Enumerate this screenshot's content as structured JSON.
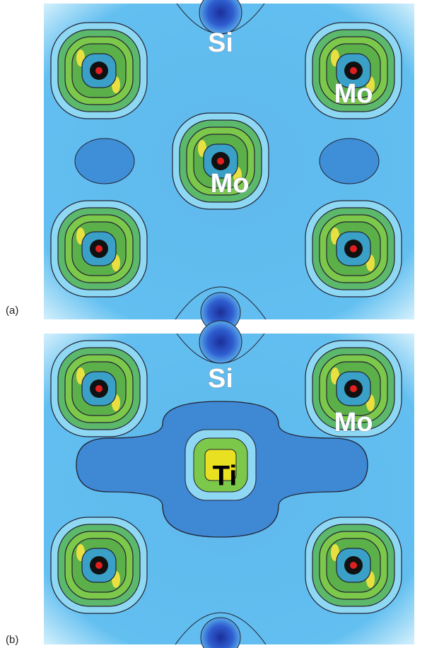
{
  "panels": [
    {
      "label": "(a)",
      "atoms": [
        "Si",
        "Mo",
        "Mo"
      ]
    },
    {
      "label": "(b)",
      "atoms": [
        "Si",
        "Mo",
        "Ti"
      ]
    }
  ]
}
